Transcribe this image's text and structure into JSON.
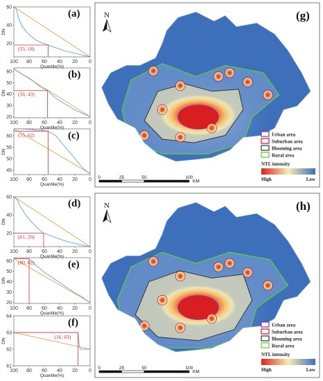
{
  "chart_data": [
    {
      "id": "a",
      "type": "line",
      "label": "(a)",
      "xlabel": "Quantile(%)",
      "ylabel": "DN",
      "xlim": [
        100,
        0
      ],
      "ylim": [
        5,
        60
      ],
      "xticks": [
        100,
        80,
        60,
        40,
        20,
        0
      ],
      "yticks": [
        20,
        40,
        60
      ],
      "ytick_labels": [
        "20",
        "40",
        "60"
      ],
      "curve": [
        [
          100,
          60
        ],
        [
          97,
          58
        ],
        [
          94,
          48
        ],
        [
          90,
          40
        ],
        [
          85,
          34
        ],
        [
          78,
          28
        ],
        [
          70,
          23
        ],
        [
          62,
          20
        ],
        [
          55,
          18
        ],
        [
          45,
          15
        ],
        [
          35,
          12
        ],
        [
          25,
          10
        ],
        [
          15,
          8
        ],
        [
          5,
          6
        ],
        [
          0,
          5
        ]
      ],
      "reference_line": [
        [
          100,
          60
        ],
        [
          0,
          5
        ]
      ],
      "point": {
        "x": 55,
        "y": 18,
        "label": "(55, 18)"
      }
    },
    {
      "id": "b",
      "type": "line",
      "label": "(b)",
      "xlabel": "Quantile(%)",
      "ylabel": "DN",
      "xlim": [
        100,
        0
      ],
      "ylim": [
        19,
        63
      ],
      "xticks": [
        100,
        80,
        60,
        40,
        20,
        0
      ],
      "yticks": [
        20,
        30,
        40,
        50,
        60
      ],
      "ytick_labels": [
        "20",
        "30",
        "40",
        "50",
        "60"
      ],
      "curve": [
        [
          100,
          62
        ],
        [
          95,
          60
        ],
        [
          88,
          57
        ],
        [
          80,
          54
        ],
        [
          72,
          50
        ],
        [
          65,
          46
        ],
        [
          56,
          43
        ],
        [
          48,
          38
        ],
        [
          40,
          34
        ],
        [
          30,
          30
        ],
        [
          20,
          26
        ],
        [
          10,
          23
        ],
        [
          0,
          20
        ]
      ],
      "reference_line": [
        [
          100,
          62
        ],
        [
          0,
          20
        ]
      ],
      "point": {
        "x": 56,
        "y": 43,
        "label": "(56, 43)"
      }
    },
    {
      "id": "c",
      "type": "line",
      "label": "(c)",
      "xlabel": "Quantile(%)",
      "ylabel": "DN",
      "xlim": [
        100,
        0
      ],
      "ylim": [
        43,
        63
      ],
      "xticks": [
        100,
        80,
        60,
        40,
        20,
        0
      ],
      "yticks": [
        45,
        50,
        55,
        60
      ],
      "ytick_labels": [
        "45",
        "50",
        "55",
        "60"
      ],
      "curve": [
        [
          100,
          63
        ],
        [
          90,
          63
        ],
        [
          80,
          62.8
        ],
        [
          70,
          62.5
        ],
        [
          60,
          62.2
        ],
        [
          55,
          62
        ],
        [
          50,
          61
        ],
        [
          45,
          60
        ],
        [
          40,
          58
        ],
        [
          35,
          56
        ],
        [
          30,
          54
        ],
        [
          25,
          52
        ],
        [
          20,
          50
        ],
        [
          15,
          48
        ],
        [
          10,
          46
        ],
        [
          5,
          44.5
        ],
        [
          0,
          43.5
        ]
      ],
      "reference_line": [
        [
          100,
          63
        ],
        [
          0,
          43.5
        ]
      ],
      "point": {
        "x": 55,
        "y": 62,
        "label": "(55, 62)"
      }
    },
    {
      "id": "d",
      "type": "line",
      "label": "(d)",
      "xlabel": "Quantile(%)",
      "ylabel": "DN",
      "xlim": [
        100,
        0
      ],
      "ylim": [
        5,
        60
      ],
      "xticks": [
        100,
        80,
        60,
        40,
        20,
        0
      ],
      "yticks": [
        20,
        40,
        60
      ],
      "ytick_labels": [
        "20",
        "40",
        "60"
      ],
      "curve": [
        [
          100,
          60
        ],
        [
          96,
          57
        ],
        [
          92,
          50
        ],
        [
          86,
          42
        ],
        [
          80,
          35
        ],
        [
          72,
          28
        ],
        [
          66,
          23
        ],
        [
          61,
          20
        ],
        [
          52,
          17
        ],
        [
          42,
          14
        ],
        [
          32,
          11
        ],
        [
          22,
          9
        ],
        [
          12,
          7
        ],
        [
          0,
          5
        ]
      ],
      "reference_line": [
        [
          100,
          60
        ],
        [
          0,
          5
        ]
      ],
      "point": {
        "x": 61,
        "y": 20,
        "label": "(61, 20)"
      }
    },
    {
      "id": "e",
      "type": "line",
      "label": "(e)",
      "xlabel": "Quantile(%)",
      "ylabel": "DN",
      "xlim": [
        100,
        0
      ],
      "ylim": [
        19,
        63
      ],
      "xticks": [
        100,
        80,
        60,
        40,
        20,
        0
      ],
      "yticks": [
        20,
        30,
        40,
        50,
        60
      ],
      "ytick_labels": [
        "20",
        "30",
        "40",
        "50",
        "60"
      ],
      "curve": [
        [
          100,
          62
        ],
        [
          92,
          62
        ],
        [
          86,
          62
        ],
        [
          80,
          62
        ],
        [
          75,
          58
        ],
        [
          68,
          54
        ],
        [
          60,
          49
        ],
        [
          52,
          45
        ],
        [
          44,
          41
        ],
        [
          36,
          37
        ],
        [
          28,
          33
        ],
        [
          20,
          29
        ],
        [
          12,
          26
        ],
        [
          5,
          22
        ],
        [
          0,
          20
        ]
      ],
      "reference_line": [
        [
          100,
          62
        ],
        [
          0,
          20
        ]
      ],
      "point": {
        "x": 80,
        "y": 62,
        "label": "(80, 62)"
      }
    },
    {
      "id": "f",
      "type": "line",
      "label": "(f)",
      "xlabel": "Quantile(%)",
      "ylabel": "DN",
      "xlim": [
        100,
        0
      ],
      "ylim": [
        61,
        64
      ],
      "xticks": [
        100,
        80,
        60,
        40,
        20,
        0
      ],
      "yticks": [
        61,
        62,
        63,
        64
      ],
      "ytick_labels": [
        "61",
        "62",
        "63",
        "64"
      ],
      "curve": [
        [
          100,
          63
        ],
        [
          80,
          63
        ],
        [
          60,
          63
        ],
        [
          40,
          63
        ],
        [
          20,
          63
        ],
        [
          16,
          63
        ],
        [
          15,
          62.6
        ],
        [
          14,
          62.2
        ],
        [
          13,
          62
        ],
        [
          10,
          62
        ],
        [
          0,
          62
        ]
      ],
      "reference_line": [
        [
          100,
          63
        ],
        [
          0,
          62
        ]
      ],
      "point": {
        "x": 16,
        "y": 63,
        "label": "(16, 63)"
      }
    }
  ],
  "maps": [
    {
      "id": "g",
      "label": "(g)",
      "north": "N",
      "legend": [
        {
          "name": "Urban area",
          "color": "#8b2fa8"
        },
        {
          "name": "Suburban area",
          "color": "#c0182a"
        },
        {
          "name": "Blooming area",
          "color": "#333333"
        },
        {
          "name": "Rural area",
          "color": "#5dcf3a"
        }
      ],
      "ntl_title": "NTL intensity",
      "ntl_high": "High",
      "ntl_low": "Low",
      "scale_ticks": [
        "0",
        "25",
        "50",
        "100"
      ],
      "scale_unit": "KM"
    },
    {
      "id": "h",
      "label": "(h)",
      "north": "N",
      "legend": [
        {
          "name": "Urban area",
          "color": "#8b2fa8"
        },
        {
          "name": "Suburban area",
          "color": "#c0182a"
        },
        {
          "name": "Blooming area",
          "color": "#333333"
        },
        {
          "name": "Rural area",
          "color": "#5dcf3a"
        }
      ],
      "ntl_title": "NTL intensity",
      "ntl_high": "High",
      "ntl_low": "Low",
      "scale_ticks": [
        "0",
        "25",
        "50",
        "100"
      ],
      "scale_unit": "KM"
    }
  ],
  "colors": {
    "curve": "#4a90c8",
    "reference": "#f0a050",
    "marker": "#e03030",
    "map_base": "#3d6fba",
    "ramp_high": "#e02020",
    "ramp_mid": "#f5eeb0",
    "ramp_low": "#3d6fba"
  }
}
